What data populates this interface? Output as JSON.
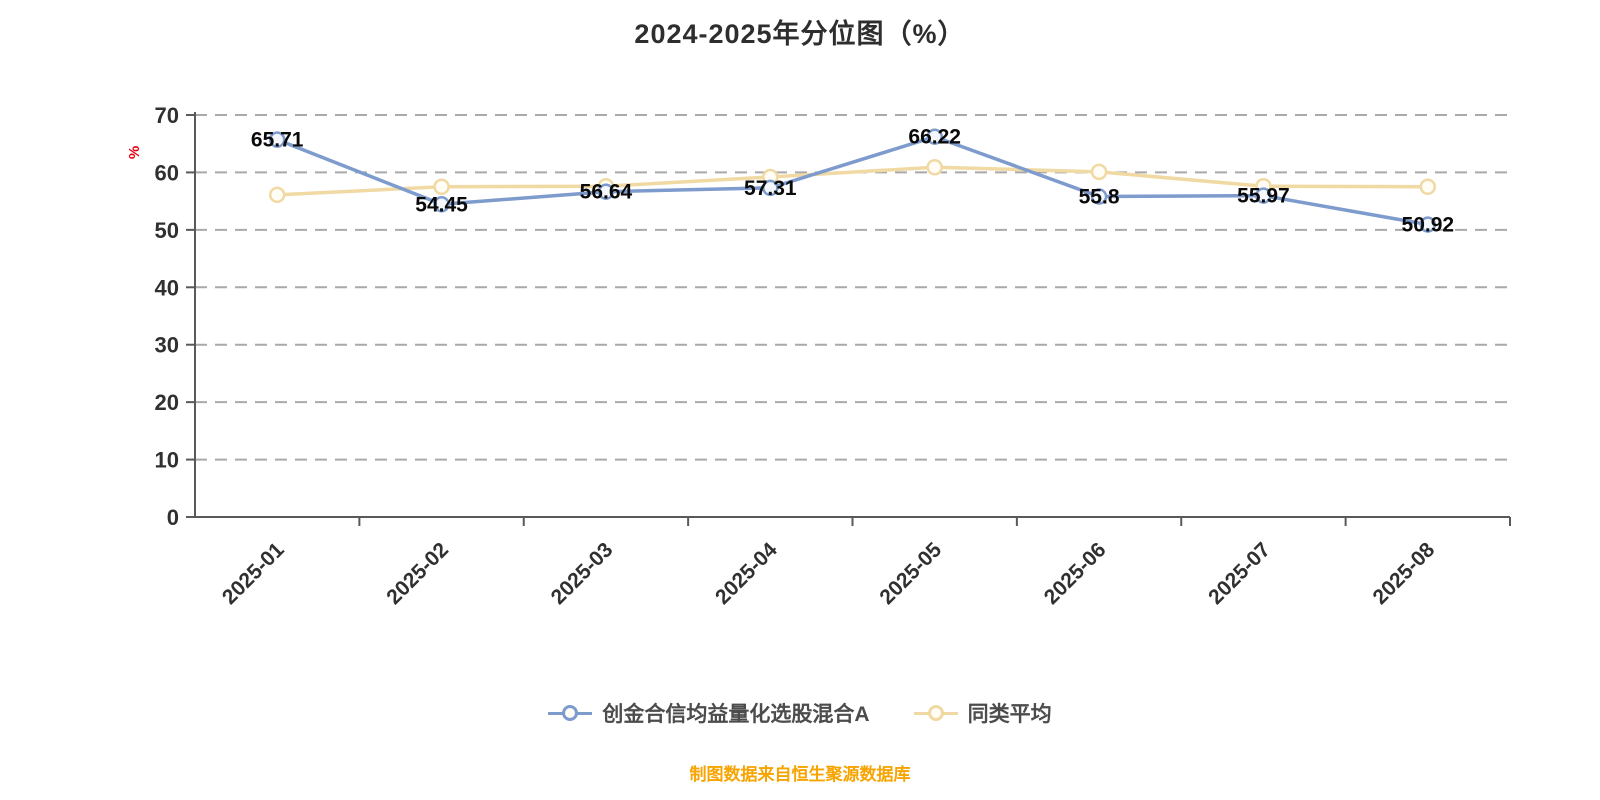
{
  "title": "2024-2025年分位图（%）",
  "y_axis_unit": "%",
  "chart_data": {
    "type": "line",
    "title": "2024-2025年分位图（%）",
    "categories": [
      "2025-01",
      "2025-02",
      "2025-03",
      "2025-04",
      "2025-05",
      "2025-06",
      "2025-07",
      "2025-08"
    ],
    "series": [
      {
        "name": "创金合信均益量化选股混合A",
        "color": "#7d9bcd",
        "marker_fill": "#f4f7fc",
        "values": [
          65.71,
          54.45,
          56.64,
          57.31,
          66.22,
          55.8,
          55.97,
          50.92
        ],
        "data_labels": true
      },
      {
        "name": "同类平均",
        "color": "#f0d9a3",
        "marker_fill": "#fffdf5",
        "values": [
          56.1,
          57.5,
          57.6,
          59.2,
          60.9,
          60.1,
          57.6,
          57.5
        ],
        "data_labels": false
      }
    ],
    "ylim": [
      0,
      70
    ],
    "y_ticks": [
      0,
      10,
      20,
      30,
      40,
      50,
      60,
      70
    ],
    "grid": "horizontal-dashed",
    "legend_position": "bottom"
  },
  "footer": {
    "source_note": "制图数据来自恒生聚源数据库"
  }
}
